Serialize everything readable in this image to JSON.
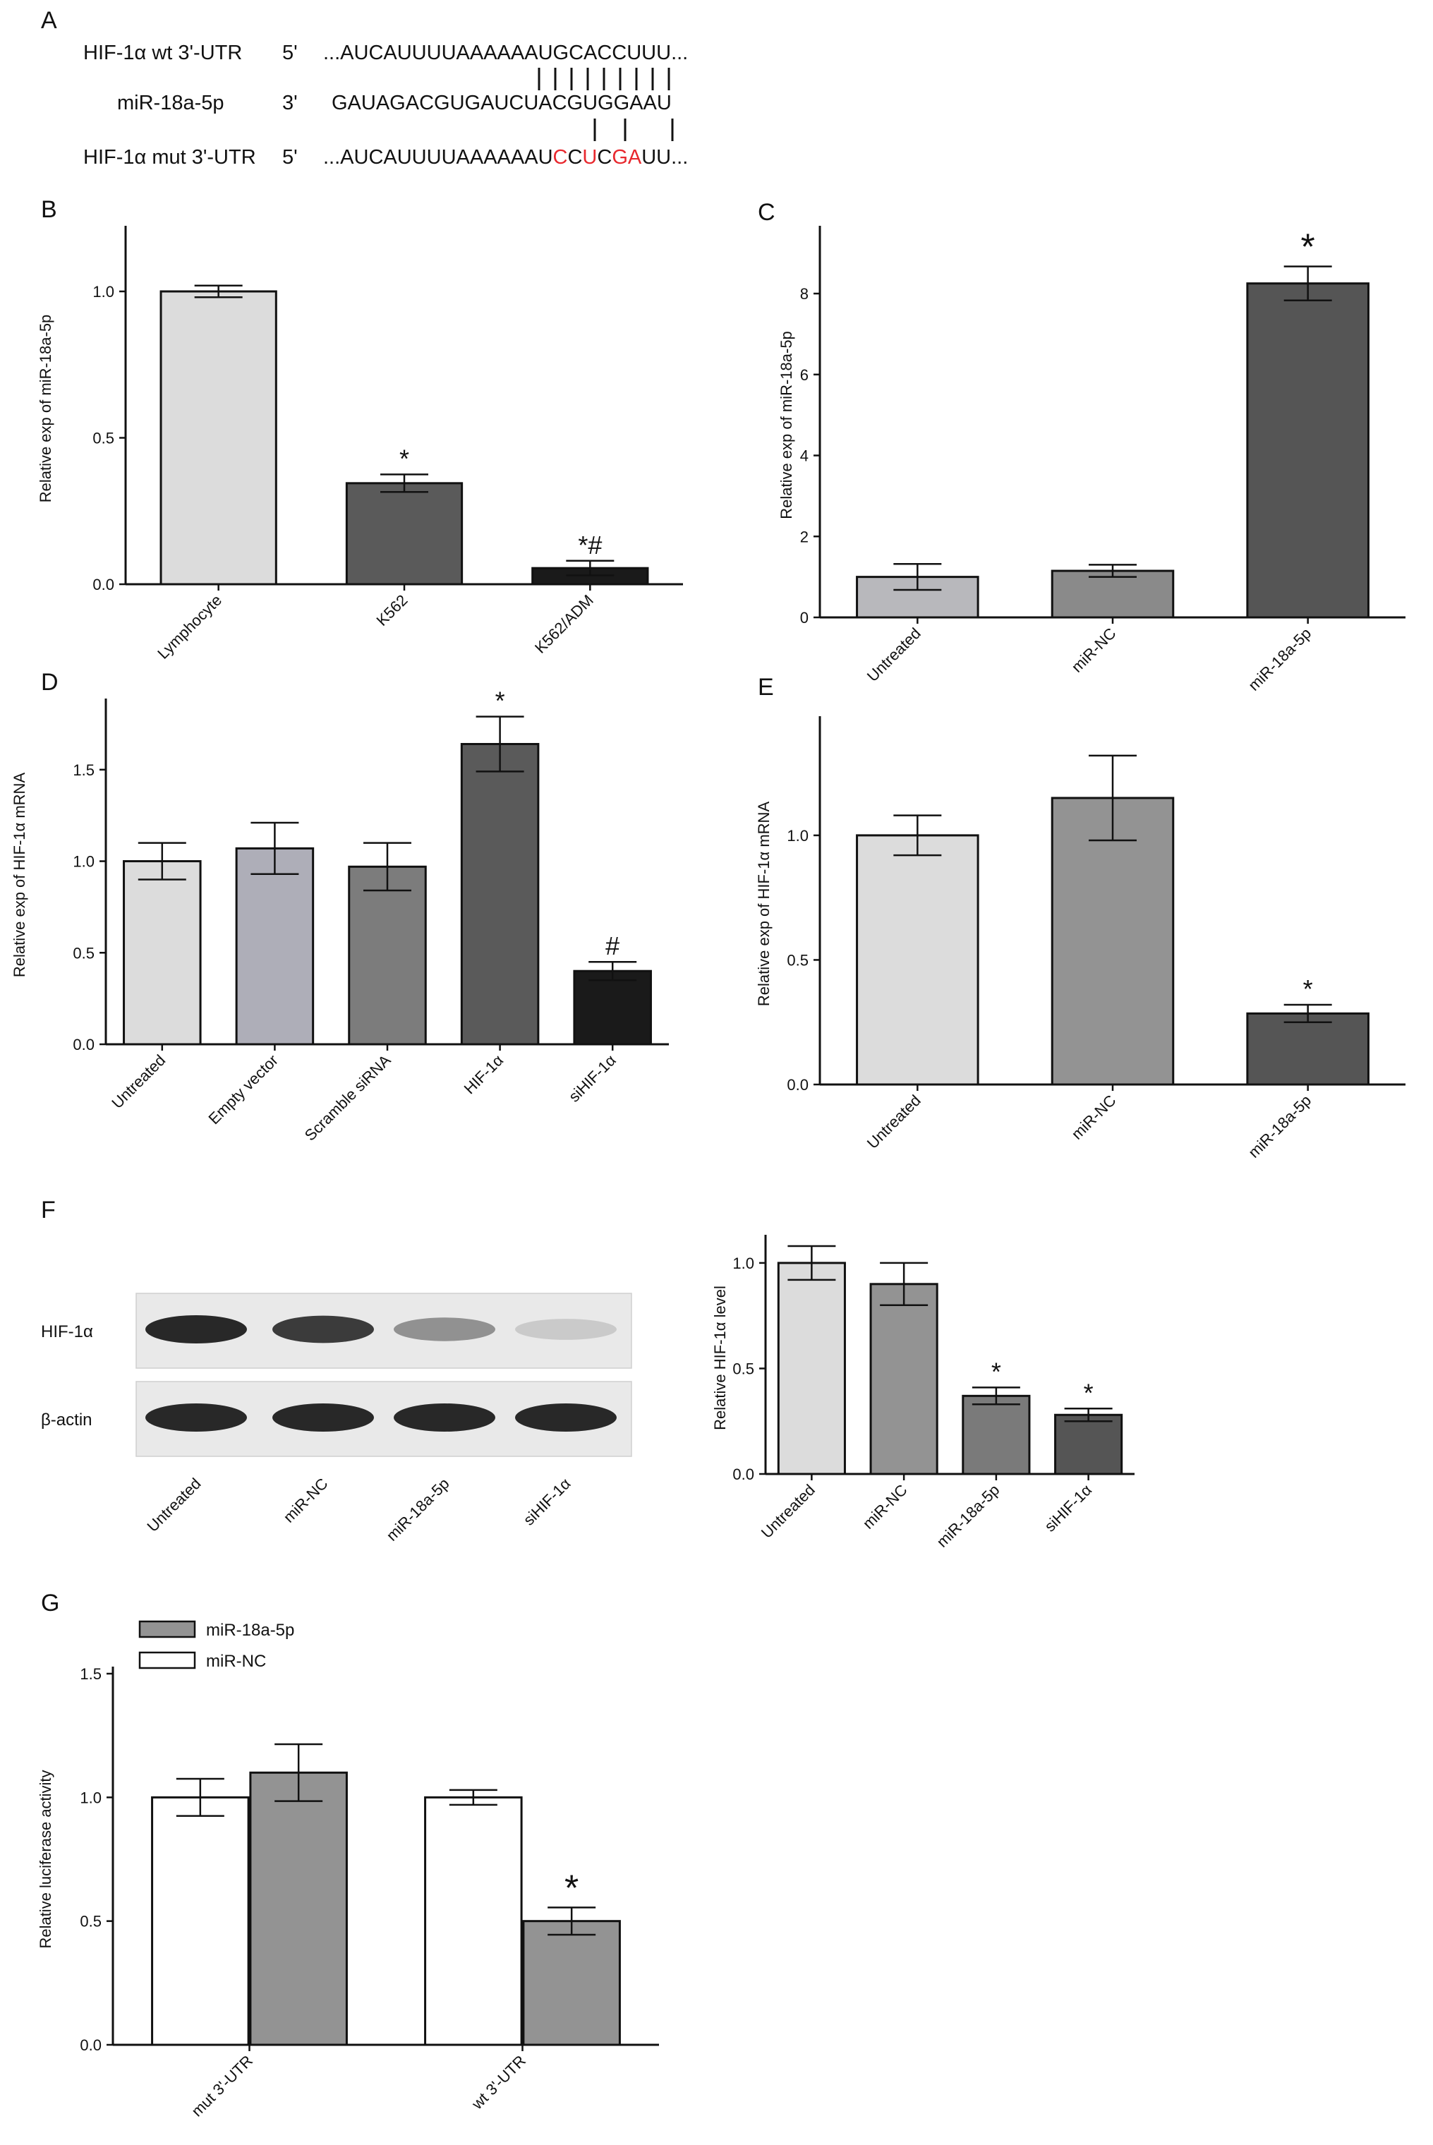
{
  "panel_a": {
    "letter": "A",
    "wt_label": "HIF-1α wt 3'-UTR",
    "wt_end": "5'",
    "wt_seq": "...AUCAUUUUAAAAAAUGCACCUUU...",
    "mir_label": "miR-18a-5p",
    "mir_end": "3'",
    "mir_seq": "GAUAGACGUGAUCUACGUGGAAU",
    "mut_label": "HIF-1α mut 3'-UTR",
    "mut_end": "5'",
    "mut_seq_parts": [
      {
        "text": "...AUCAUUUUAAAAAAU",
        "red": false
      },
      {
        "text": "C",
        "red": true
      },
      {
        "text": "C",
        "red": false
      },
      {
        "text": "U",
        "red": true
      },
      {
        "text": "C",
        "red": false
      },
      {
        "text": "GA",
        "red": true
      },
      {
        "text": "UU...",
        "red": false
      }
    ]
  },
  "blot": {
    "row_labels": [
      "HIF-1α",
      "β-actin"
    ],
    "lane_labels": [
      "Untreated",
      "miR-NC",
      "miR-18a-5p",
      "siHIF-1α"
    ],
    "hif_band_intensity": [
      1.0,
      0.9,
      0.45,
      0.15
    ],
    "actin_band_intensity": [
      1.0,
      1.0,
      1.0,
      1.0
    ]
  },
  "chart_data": [
    {
      "id": "B",
      "letter": "B",
      "type": "bar",
      "ylabel": "Relative exp of miR-18a-5p",
      "categories": [
        "Lymphocyte",
        "K562",
        "K562/ADM"
      ],
      "values": [
        1.0,
        0.345,
        0.055
      ],
      "errors": [
        0.02,
        0.03,
        0.025
      ],
      "colors": [
        "#dcdcdc",
        "#5a5a5a",
        "#1a1a1a"
      ],
      "annotations": [
        "",
        "*",
        "*#"
      ],
      "ylim": [
        0,
        1.2
      ],
      "yticks": [
        "0.0",
        "0.5",
        "1.0"
      ]
    },
    {
      "id": "C",
      "letter": "C",
      "type": "bar",
      "ylabel": "Relative exp of miR-18a-5p",
      "categories": [
        "Untreated",
        "miR-NC",
        "miR-18a-5p"
      ],
      "values": [
        1.0,
        1.15,
        8.25
      ],
      "errors": [
        0.32,
        0.15,
        0.42
      ],
      "colors": [
        "#b8b8bc",
        "#8a8a8a",
        "#555555"
      ],
      "annotations": [
        "",
        "",
        "*"
      ],
      "ylim": [
        0,
        9.5
      ],
      "yticks": [
        "0",
        "2",
        "4",
        "6",
        "8"
      ]
    },
    {
      "id": "D",
      "letter": "D",
      "type": "bar",
      "ylabel": "Relative exp of HIF-1α mRNA",
      "categories": [
        "Untreated",
        "Empty vector",
        "Scramble siRNA",
        "HIF-1α",
        "siHIF-1α"
      ],
      "values": [
        1.0,
        1.07,
        0.97,
        1.64,
        0.4
      ],
      "errors": [
        0.1,
        0.14,
        0.13,
        0.15,
        0.05
      ],
      "colors": [
        "#dcdcdc",
        "#aeaeb8",
        "#7c7c7c",
        "#5a5a5a",
        "#1a1a1a"
      ],
      "annotations": [
        "",
        "",
        "",
        "*",
        "#"
      ],
      "ylim": [
        0,
        1.85
      ],
      "yticks": [
        "0.0",
        "0.5",
        "1.0",
        "1.5"
      ]
    },
    {
      "id": "E",
      "letter": "E",
      "type": "bar",
      "ylabel": "Relative exp of HIF-1α mRNA",
      "categories": [
        "Untreated",
        "miR-NC",
        "miR-18a-5p"
      ],
      "values": [
        1.0,
        1.15,
        0.285
      ],
      "errors": [
        0.08,
        0.17,
        0.035
      ],
      "colors": [
        "#dcdcdc",
        "#939393",
        "#555555"
      ],
      "annotations": [
        "",
        "",
        "*"
      ],
      "ylim": [
        0,
        1.45
      ],
      "yticks": [
        "0.0",
        "0.5",
        "1.0"
      ]
    },
    {
      "id": "F",
      "letter": "F",
      "type": "bar",
      "ylabel": "Relative HIF-1α level",
      "categories": [
        "Untreated",
        "miR-NC",
        "miR-18a-5p",
        "siHIF-1α"
      ],
      "values": [
        1.0,
        0.9,
        0.37,
        0.28
      ],
      "errors": [
        0.08,
        0.1,
        0.04,
        0.03
      ],
      "colors": [
        "#dcdcdc",
        "#939393",
        "#7a7a7a",
        "#555555"
      ],
      "annotations": [
        "",
        "",
        "*",
        "*"
      ],
      "ylim": [
        0,
        1.1
      ],
      "yticks": [
        "0.0",
        "0.5",
        "1.0"
      ]
    },
    {
      "id": "G",
      "letter": "G",
      "type": "bar",
      "ylabel": "Relative luciferase activity",
      "categories": [
        "mut 3'-UTR",
        "wt 3'-UTR"
      ],
      "series": [
        {
          "name": "miR-NC",
          "values": [
            1.0,
            1.0
          ],
          "errors": [
            0.075,
            0.03
          ],
          "color": "#ffffff"
        },
        {
          "name": "miR-18a-5p",
          "values": [
            1.1,
            0.5
          ],
          "errors": [
            0.115,
            0.055
          ],
          "color": "#939393"
        }
      ],
      "annotations": [
        [
          "",
          ""
        ],
        [
          "",
          "*"
        ]
      ],
      "legend_order": [
        "miR-18a-5p",
        "miR-NC"
      ],
      "legend": "top-left",
      "ylim": [
        0,
        1.5
      ],
      "yticks": [
        "0.0",
        "0.5",
        "1.0",
        "1.5"
      ]
    }
  ]
}
